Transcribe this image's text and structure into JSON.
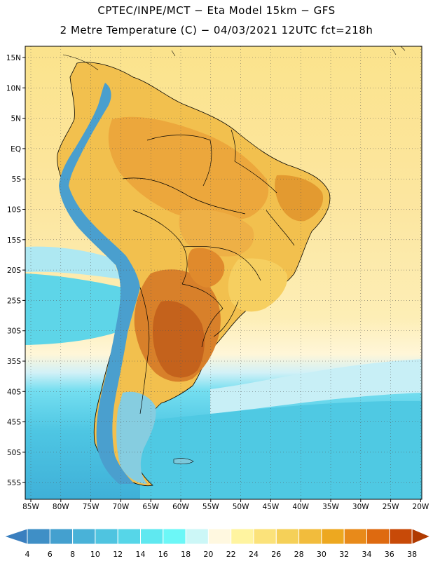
{
  "header": {
    "title_line1": "CPTEC/INPE/MCT −  Eta Model 15km − GFS",
    "title_line2": "2 Metre Temperature (C) − 04/03/2021 12UTC fct=218h"
  },
  "axes": {
    "lat_labels": [
      "15N",
      "10N",
      "5N",
      "EQ",
      "5S",
      "10S",
      "15S",
      "20S",
      "25S",
      "30S",
      "35S",
      "40S",
      "45S",
      "50S",
      "55S"
    ],
    "lon_labels": [
      "85W",
      "80W",
      "75W",
      "70W",
      "65W",
      "60W",
      "55W",
      "50W",
      "45W",
      "40W",
      "35W",
      "30W",
      "25W",
      "20W"
    ]
  },
  "colorbar": {
    "labels": [
      "4",
      "6",
      "8",
      "10",
      "12",
      "14",
      "16",
      "18",
      "20",
      "22",
      "24",
      "26",
      "28",
      "30",
      "32",
      "34",
      "36",
      "38"
    ],
    "colors": [
      "#3a7fbf",
      "#3f8fc6",
      "#44a0cf",
      "#49b2d8",
      "#4fc4e0",
      "#56d6e8",
      "#5fe8f0",
      "#6cf7f7",
      "#ccf7f7",
      "#fff8e0",
      "#fff4a0",
      "#fbe27a",
      "#f5d058",
      "#f2bc3c",
      "#eda820",
      "#e88a1a",
      "#de6a10",
      "#c84a08",
      "#b03a00"
    ]
  },
  "legend_scale": {
    "regions": [
      {
        "name": "ocean-tropical",
        "color": "#fbe58f"
      },
      {
        "name": "ocean-subtropical",
        "color": "#fce9a4"
      },
      {
        "name": "ocean-transition",
        "color": "#fff6d6"
      },
      {
        "name": "ocean-cool",
        "color": "#cdeef5"
      },
      {
        "name": "ocean-cold",
        "color": "#57d2e6"
      },
      {
        "name": "ocean-colder",
        "color": "#42b8da"
      },
      {
        "name": "land-warm",
        "color": "#f3c24a"
      },
      {
        "name": "land-hot",
        "color": "#e9a23a"
      },
      {
        "name": "land-very-hot",
        "color": "#d77c22"
      },
      {
        "name": "land-extreme",
        "color": "#c7621a"
      },
      {
        "name": "andes-cold",
        "color": "#3f90c4"
      },
      {
        "name": "patagonia",
        "color": "#7cc7d8"
      }
    ]
  }
}
